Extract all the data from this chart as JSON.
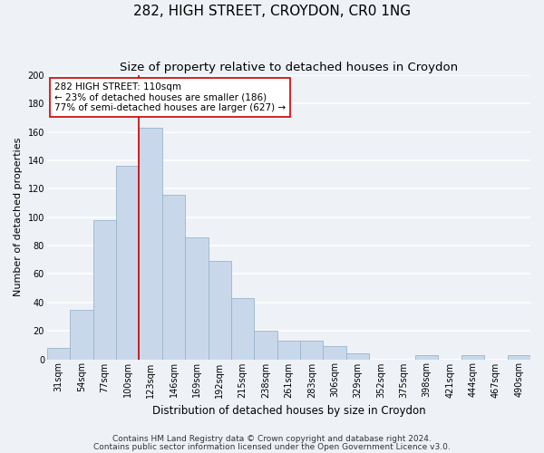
{
  "title": "282, HIGH STREET, CROYDON, CR0 1NG",
  "subtitle": "Size of property relative to detached houses in Croydon",
  "xlabel": "Distribution of detached houses by size in Croydon",
  "ylabel": "Number of detached properties",
  "categories": [
    "31sqm",
    "54sqm",
    "77sqm",
    "100sqm",
    "123sqm",
    "146sqm",
    "169sqm",
    "192sqm",
    "215sqm",
    "238sqm",
    "261sqm",
    "283sqm",
    "306sqm",
    "329sqm",
    "352sqm",
    "375sqm",
    "398sqm",
    "421sqm",
    "444sqm",
    "467sqm",
    "490sqm"
  ],
  "values": [
    8,
    35,
    98,
    136,
    163,
    116,
    86,
    69,
    43,
    20,
    13,
    13,
    9,
    4,
    0,
    0,
    3,
    0,
    3,
    0,
    3
  ],
  "bar_color": "#c8d8ea",
  "bar_edge_color": "#9ab4cc",
  "vline_color": "#cc0000",
  "vline_x_index": 3.5,
  "annotation_title": "282 HIGH STREET: 110sqm",
  "annotation_line1": "← 23% of detached houses are smaller (186)",
  "annotation_line2": "77% of semi-detached houses are larger (627) →",
  "annotation_box_facecolor": "#ffffff",
  "annotation_box_edgecolor": "#cc0000",
  "ylim": [
    0,
    200
  ],
  "yticks": [
    0,
    20,
    40,
    60,
    80,
    100,
    120,
    140,
    160,
    180,
    200
  ],
  "footnote1": "Contains HM Land Registry data © Crown copyright and database right 2024.",
  "footnote2": "Contains public sector information licensed under the Open Government Licence v3.0.",
  "bg_color": "#eef2f7",
  "plot_bg_color": "#eef2f7",
  "grid_color": "#ffffff",
  "title_fontsize": 11,
  "subtitle_fontsize": 9.5,
  "xlabel_fontsize": 8.5,
  "ylabel_fontsize": 8,
  "tick_fontsize": 7,
  "annot_fontsize": 7.5,
  "footnote_fontsize": 6.5
}
